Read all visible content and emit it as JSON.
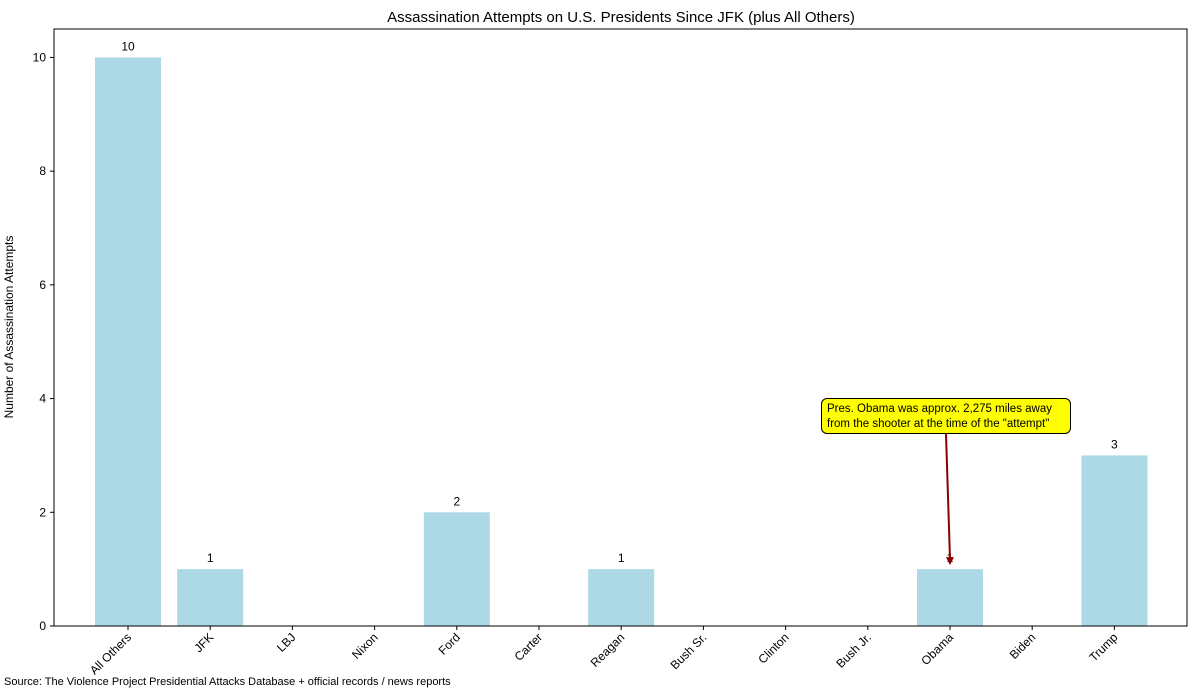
{
  "chart_data": {
    "type": "bar",
    "title": "Assassination Attempts on U.S. Presidents Since JFK (plus All Others)",
    "xlabel": "",
    "ylabel": "Number of Assassination Attempts",
    "categories": [
      "All Others",
      "JFK",
      "LBJ",
      "Nixon",
      "Ford",
      "Carter",
      "Reagan",
      "Bush Sr.",
      "Clinton",
      "Bush Jr.",
      "Obama",
      "Biden",
      "Trump"
    ],
    "values": [
      10,
      1,
      0,
      0,
      2,
      0,
      1,
      0,
      0,
      0,
      1,
      0,
      3
    ],
    "data_labels": [
      "10",
      "1",
      "",
      "",
      "2",
      "",
      "1",
      "",
      "",
      "",
      "1",
      "",
      "3"
    ],
    "ylim": [
      0,
      10.5
    ],
    "yticks": [
      0,
      2,
      4,
      6,
      8,
      10
    ],
    "grid": false,
    "bar_color": "#add8e6",
    "annotation": {
      "target_category": "Obama",
      "lines": [
        "Pres. Obama was approx. 2,275 miles away",
        "from the shooter at the time of the \"attempt\""
      ],
      "box_color": "#ffff00",
      "arrow_color": "#8b0000"
    },
    "source": "Source: The Violence Project Presidential Attacks Database + official records / news reports"
  }
}
